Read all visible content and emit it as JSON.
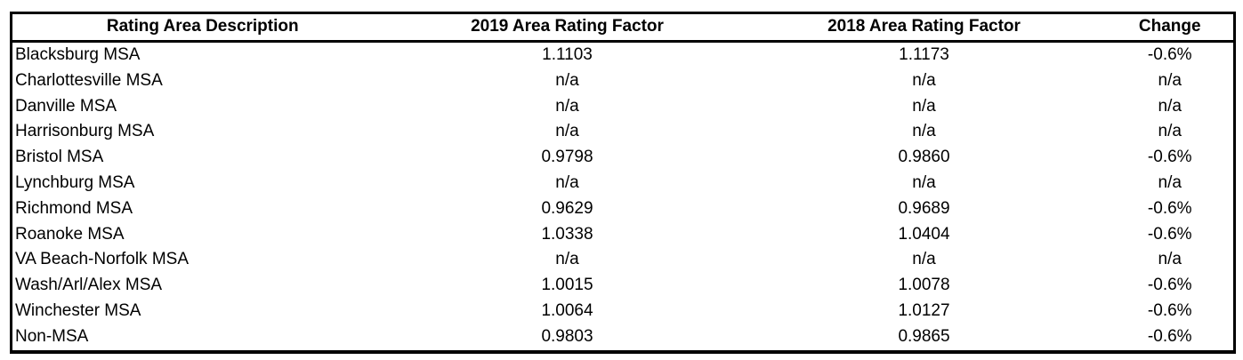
{
  "page": {
    "background_color": "#ffffff",
    "border_color": "#000000",
    "text_color": "#000000"
  },
  "table": {
    "columns": [
      {
        "key": "rating-area-description",
        "label": "Rating Area Description",
        "align": "left",
        "header_align": "center"
      },
      {
        "key": "2019-area-rating-factor",
        "label": "2019 Area Rating Factor",
        "align": "center",
        "header_align": "center"
      },
      {
        "key": "2018-area-rating-factor",
        "label": "2018 Area Rating Factor",
        "align": "center",
        "header_align": "center"
      },
      {
        "key": "change",
        "label": "Change",
        "align": "center",
        "header_align": "center"
      }
    ],
    "rows": [
      [
        "Blacksburg MSA",
        "1.1103",
        "1.1173",
        "-0.6%"
      ],
      [
        "Charlottesville MSA",
        "n/a",
        "n/a",
        "n/a"
      ],
      [
        "Danville MSA",
        "n/a",
        "n/a",
        "n/a"
      ],
      [
        "Harrisonburg MSA",
        "n/a",
        "n/a",
        "n/a"
      ],
      [
        "Bristol MSA",
        "0.9798",
        "0.9860",
        "-0.6%"
      ],
      [
        "Lynchburg MSA",
        "n/a",
        "n/a",
        "n/a"
      ],
      [
        "Richmond MSA",
        "0.9629",
        "0.9689",
        "-0.6%"
      ],
      [
        "Roanoke MSA",
        "1.0338",
        "1.0404",
        "-0.6%"
      ],
      [
        "VA Beach-Norfolk MSA",
        "n/a",
        "n/a",
        "n/a"
      ],
      [
        "Wash/Arl/Alex MSA",
        "1.0015",
        "1.0078",
        "-0.6%"
      ],
      [
        "Winchester MSA",
        "1.0064",
        "1.0127",
        "-0.6%"
      ],
      [
        "Non-MSA",
        "0.9803",
        "0.9865",
        "-0.6%"
      ]
    ]
  }
}
